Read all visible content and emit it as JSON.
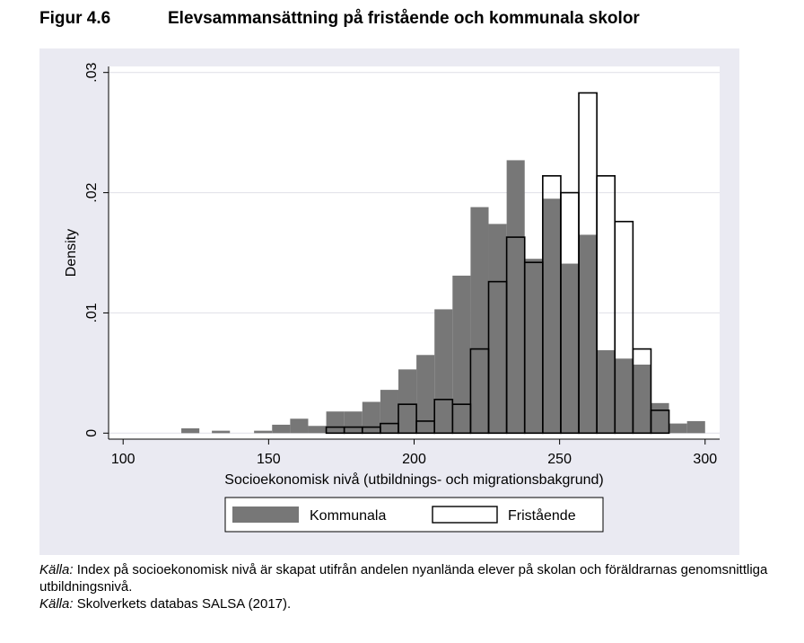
{
  "figure": {
    "number": "Figur 4.6",
    "title": "Elevsammansättning på fristående och kommunala skolor"
  },
  "chart_data": {
    "type": "bar",
    "subtype": "overlaid-histogram",
    "xlabel": "Socioekonomisk nivå (utbildnings- och migrationsbakgrund)",
    "ylabel": "Density",
    "xlim": [
      95,
      305
    ],
    "ylim": [
      -0.0005,
      0.0305
    ],
    "xticks": [
      100,
      150,
      200,
      250,
      300
    ],
    "xtick_labels": [
      "100",
      "150",
      "200",
      "250",
      "300"
    ],
    "yticks": [
      0,
      0.01,
      0.02,
      0.03
    ],
    "ytick_labels": [
      "0",
      ".01",
      ".02",
      ".03"
    ],
    "grid": true,
    "legend_position": "bottom",
    "series": [
      {
        "name": "Kommunala",
        "style": "filled",
        "color": "#777777",
        "bin_width": 6.2,
        "bins": [
          {
            "x0": 120.0,
            "value": 0.0004
          },
          {
            "x0": 130.5,
            "value": 0.0002
          },
          {
            "x0": 145.0,
            "value": 0.0002
          },
          {
            "x0": 151.2,
            "value": 0.0007
          },
          {
            "x0": 157.4,
            "value": 0.0012
          },
          {
            "x0": 163.6,
            "value": 0.0006
          },
          {
            "x0": 169.8,
            "value": 0.0018
          },
          {
            "x0": 176.0,
            "value": 0.0018
          },
          {
            "x0": 182.2,
            "value": 0.0026
          },
          {
            "x0": 188.4,
            "value": 0.0036
          },
          {
            "x0": 194.6,
            "value": 0.0053
          },
          {
            "x0": 200.8,
            "value": 0.0065
          },
          {
            "x0": 207.0,
            "value": 0.0103
          },
          {
            "x0": 213.2,
            "value": 0.0131
          },
          {
            "x0": 219.4,
            "value": 0.0188
          },
          {
            "x0": 225.6,
            "value": 0.0174
          },
          {
            "x0": 231.8,
            "value": 0.0227
          },
          {
            "x0": 238.0,
            "value": 0.0145
          },
          {
            "x0": 244.2,
            "value": 0.0195
          },
          {
            "x0": 250.4,
            "value": 0.0141
          },
          {
            "x0": 256.6,
            "value": 0.0165
          },
          {
            "x0": 262.8,
            "value": 0.0069
          },
          {
            "x0": 269.0,
            "value": 0.0062
          },
          {
            "x0": 275.2,
            "value": 0.0057
          },
          {
            "x0": 281.4,
            "value": 0.0025
          },
          {
            "x0": 287.6,
            "value": 0.0008
          },
          {
            "x0": 293.8,
            "value": 0.001
          }
        ]
      },
      {
        "name": "Fristående",
        "style": "outline",
        "color": "#ffffff",
        "bin_width": 6.2,
        "bins": [
          {
            "x0": 169.8,
            "value": 0.0005
          },
          {
            "x0": 176.0,
            "value": 0.0005
          },
          {
            "x0": 182.2,
            "value": 0.0005
          },
          {
            "x0": 188.4,
            "value": 0.0008
          },
          {
            "x0": 194.6,
            "value": 0.0024
          },
          {
            "x0": 200.8,
            "value": 0.001
          },
          {
            "x0": 207.0,
            "value": 0.0028
          },
          {
            "x0": 213.2,
            "value": 0.0024
          },
          {
            "x0": 219.4,
            "value": 0.007
          },
          {
            "x0": 225.6,
            "value": 0.0126
          },
          {
            "x0": 231.8,
            "value": 0.0163
          },
          {
            "x0": 238.0,
            "value": 0.0142
          },
          {
            "x0": 244.2,
            "value": 0.0214
          },
          {
            "x0": 250.4,
            "value": 0.02
          },
          {
            "x0": 256.6,
            "value": 0.0283
          },
          {
            "x0": 262.8,
            "value": 0.0214
          },
          {
            "x0": 269.0,
            "value": 0.0176
          },
          {
            "x0": 275.2,
            "value": 0.007
          },
          {
            "x0": 281.4,
            "value": 0.0019
          }
        ]
      }
    ]
  },
  "source_notes": [
    {
      "label": "Källa:",
      "text": "Index på socioekonomisk nivå är skapat utifrån andelen nyanlända elever på skolan och föräldrarnas genomsnittliga utbildningsnivå."
    },
    {
      "label": "Källa:",
      "text": "Skolverkets databas SALSA (2017)."
    }
  ]
}
